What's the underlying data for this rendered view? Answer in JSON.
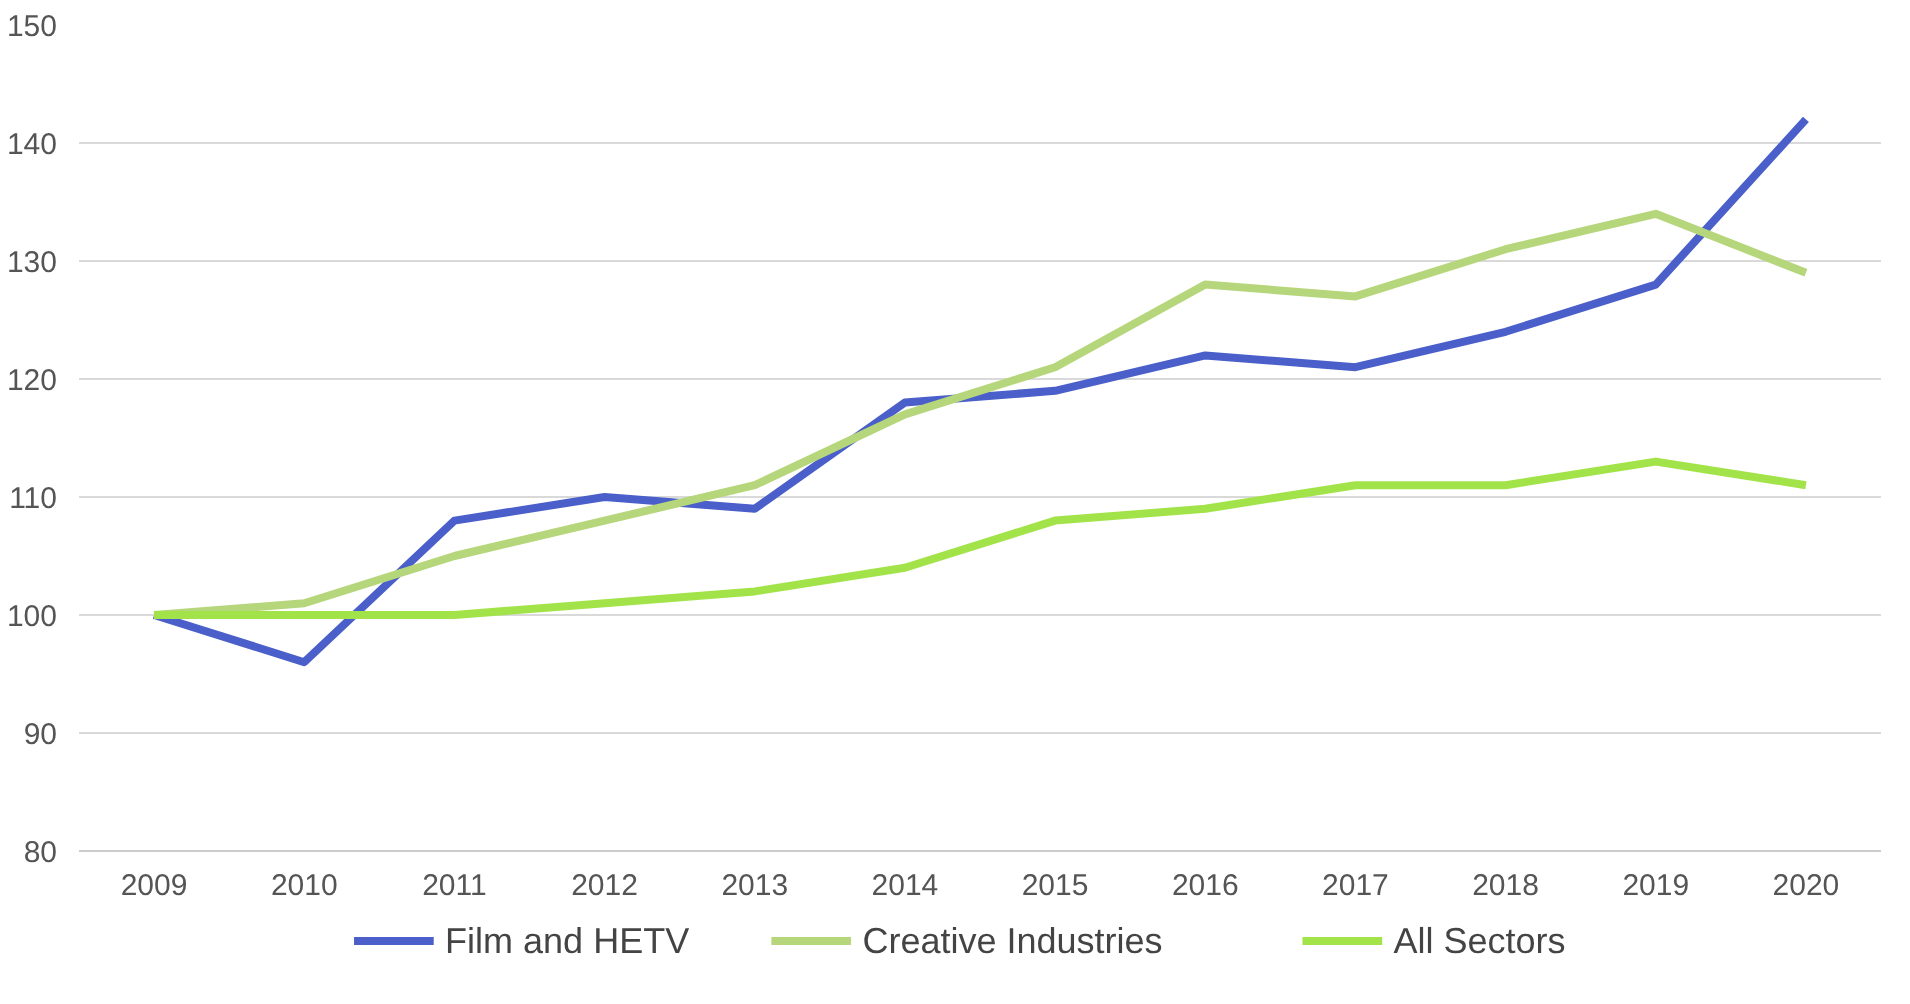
{
  "chart_data": {
    "type": "line",
    "categories": [
      "2009",
      "2010",
      "2011",
      "2012",
      "2013",
      "2014",
      "2015",
      "2016",
      "2017",
      "2018",
      "2019",
      "2020"
    ],
    "series": [
      {
        "name": "Film and HETV",
        "color": "#4a5fc9",
        "values": [
          100,
          96,
          108,
          110,
          109,
          118,
          119,
          122,
          121,
          124,
          128,
          142
        ]
      },
      {
        "name": "Creative Industries",
        "color": "#b5d67a",
        "values": [
          100,
          101,
          105,
          108,
          111,
          117,
          121,
          128,
          127,
          131,
          134,
          129
        ]
      },
      {
        "name": "All Sectors",
        "color": "#a3e34a",
        "values": [
          100,
          100,
          100,
          101,
          102,
          104,
          108,
          109,
          111,
          111,
          113,
          111
        ]
      }
    ],
    "ylim": [
      80,
      150
    ],
    "yticks": [
      80,
      90,
      100,
      110,
      120,
      130,
      140,
      150
    ],
    "grid": "y",
    "legend": "bottom",
    "marker": "none",
    "line_style": "solid"
  }
}
